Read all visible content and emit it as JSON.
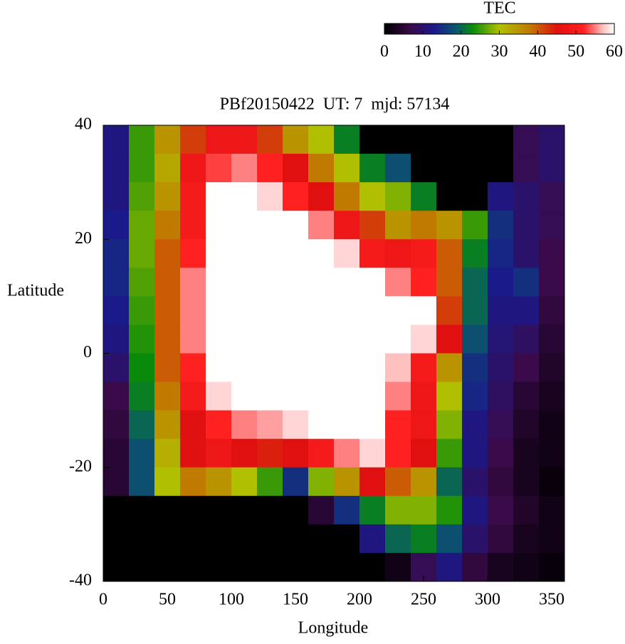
{
  "chart_data": {
    "type": "heatmap",
    "title": "PBf20150422  UT: 7  mjd: 57134",
    "x_label": "Longitude",
    "y_label": "Latitude",
    "colorbar_label": "TEC",
    "x": [
      10,
      30,
      50,
      70,
      90,
      110,
      130,
      150,
      170,
      190,
      210,
      230,
      250,
      270,
      290,
      310,
      330,
      350
    ],
    "y": [
      37.5,
      32.5,
      27.5,
      22.5,
      17.5,
      12.5,
      7.5,
      2.5,
      -2.5,
      -7.5,
      -12.5,
      -17.5,
      -22.5,
      -27.5,
      -32.5,
      -37.5
    ],
    "z": [
      [
        12,
        25,
        35,
        42,
        48,
        48,
        42,
        35,
        30,
        22,
        0,
        0,
        0,
        0,
        0,
        0,
        8,
        10
      ],
      [
        12,
        25,
        33,
        48,
        53,
        55,
        52,
        45,
        38,
        30,
        22,
        18,
        0,
        0,
        0,
        0,
        8,
        10
      ],
      [
        12,
        26,
        35,
        50,
        60,
        60,
        58,
        52,
        45,
        38,
        30,
        28,
        22,
        0,
        0,
        12,
        10,
        8
      ],
      [
        13,
        27,
        38,
        50,
        60,
        60,
        60,
        60,
        55,
        48,
        42,
        35,
        38,
        35,
        25,
        15,
        10,
        8
      ],
      [
        14,
        27,
        40,
        52,
        60,
        60,
        60,
        60,
        60,
        58,
        50,
        48,
        50,
        40,
        22,
        14,
        10,
        7
      ],
      [
        14,
        26,
        40,
        55,
        60,
        60,
        60,
        60,
        60,
        60,
        60,
        55,
        52,
        40,
        20,
        13,
        15,
        7
      ],
      [
        13,
        25,
        40,
        55,
        60,
        60,
        60,
        60,
        60,
        60,
        60,
        60,
        60,
        42,
        20,
        12,
        12,
        6
      ],
      [
        12,
        24,
        40,
        55,
        60,
        60,
        60,
        60,
        60,
        60,
        60,
        60,
        58,
        45,
        18,
        11,
        9,
        5
      ],
      [
        10,
        23,
        40,
        52,
        60,
        60,
        60,
        60,
        60,
        60,
        60,
        57,
        50,
        35,
        15,
        10,
        7,
        4
      ],
      [
        7,
        22,
        38,
        50,
        58,
        60,
        60,
        60,
        60,
        60,
        60,
        55,
        48,
        30,
        14,
        9,
        5,
        3
      ],
      [
        6,
        20,
        35,
        45,
        52,
        55,
        56,
        58,
        60,
        60,
        60,
        52,
        48,
        28,
        12,
        8,
        4,
        2
      ],
      [
        5,
        18,
        32,
        45,
        48,
        45,
        44,
        45,
        50,
        55,
        58,
        52,
        45,
        25,
        12,
        7,
        3,
        2
      ],
      [
        5,
        18,
        30,
        38,
        35,
        30,
        25,
        15,
        28,
        35,
        45,
        40,
        35,
        20,
        10,
        6,
        3,
        1
      ],
      [
        0,
        0,
        0,
        0,
        0,
        0,
        0,
        0,
        5,
        15,
        22,
        28,
        28,
        24,
        12,
        7,
        4,
        2
      ],
      [
        0,
        0,
        0,
        0,
        0,
        0,
        0,
        0,
        0,
        0,
        12,
        20,
        22,
        18,
        10,
        6,
        3,
        2
      ],
      [
        0,
        0,
        0,
        0,
        0,
        0,
        0,
        0,
        0,
        0,
        0,
        2,
        8,
        12,
        6,
        3,
        2,
        1
      ]
    ],
    "xlim": [
      0,
      360
    ],
    "xticks": [
      0,
      50,
      100,
      150,
      200,
      250,
      300,
      350
    ],
    "ylim": [
      -40,
      40
    ],
    "yticks": [
      -40,
      -20,
      0,
      20,
      40
    ],
    "clim": [
      0,
      60
    ],
    "cticks": [
      0,
      10,
      20,
      30,
      40,
      50,
      60
    ],
    "colormap": [
      [
        0,
        "#000000"
      ],
      [
        7,
        "#3a0a4a"
      ],
      [
        13,
        "#1a1a8a"
      ],
      [
        19,
        "#0a5a6a"
      ],
      [
        23,
        "#0a8a0a"
      ],
      [
        30,
        "#b0c000"
      ],
      [
        38,
        "#c07a00"
      ],
      [
        45,
        "#e01010"
      ],
      [
        52,
        "#ff2020"
      ],
      [
        57,
        "#ffc0c0"
      ],
      [
        60,
        "#ffffff"
      ]
    ]
  }
}
